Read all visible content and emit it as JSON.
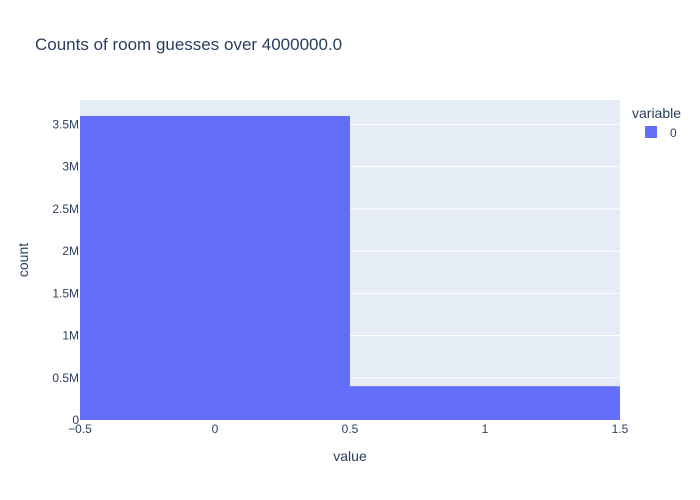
{
  "chart_data": {
    "type": "bar",
    "title": "Counts of room guesses over 4000000.0",
    "xlabel": "value",
    "ylabel": "count",
    "legend": {
      "title": "variable",
      "placement": "top-right"
    },
    "series": [
      {
        "name": "0",
        "color": "#636efa",
        "bins": [
          {
            "x0": -0.5,
            "x1": 0.5,
            "count": 3600000
          },
          {
            "x0": 0.5,
            "x1": 1.5,
            "count": 400000
          }
        ]
      }
    ],
    "xlim": [
      -0.5,
      1.5
    ],
    "ylim": [
      0,
      3789474
    ],
    "xticks": [
      {
        "value": -0.5,
        "label": "−0.5"
      },
      {
        "value": 0,
        "label": "0"
      },
      {
        "value": 0.5,
        "label": "0.5"
      },
      {
        "value": 1,
        "label": "1"
      },
      {
        "value": 1.5,
        "label": "1.5"
      }
    ],
    "yticks": [
      {
        "value": 0,
        "label": "0"
      },
      {
        "value": 500000,
        "label": "0.5M"
      },
      {
        "value": 1000000,
        "label": "1M"
      },
      {
        "value": 1500000,
        "label": "1.5M"
      },
      {
        "value": 2000000,
        "label": "2M"
      },
      {
        "value": 2500000,
        "label": "2.5M"
      },
      {
        "value": 3000000,
        "label": "3M"
      },
      {
        "value": 3500000,
        "label": "3.5M"
      }
    ],
    "grid": true,
    "colors": {
      "plot_bg": "#e5ecf6",
      "grid": "#ffffff",
      "text": "#2a3f5f"
    }
  }
}
